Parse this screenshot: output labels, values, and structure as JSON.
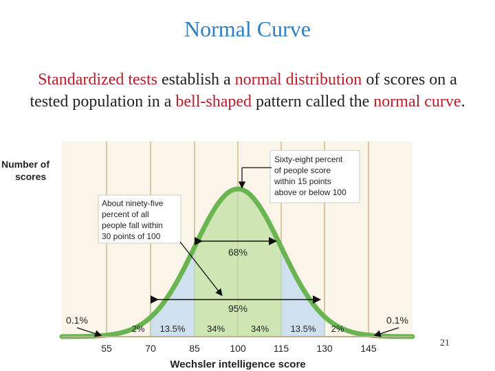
{
  "title": "Normal Curve",
  "subtitle": {
    "p1": "Standardized tests",
    "p2": " establish a ",
    "p3": "normal distribution",
    "p4": " of scores on a tested population in a ",
    "p5": "bell-shaped",
    "p6": " pattern called the ",
    "p7": "normal curve",
    "p8": "."
  },
  "slide_number": "21",
  "colors": {
    "title": "#2f7fc4",
    "highlight": "#b3202a",
    "curve": "#6ab552",
    "band_68": "#cde6b3",
    "band_95": "#cfe0ee",
    "background": "#faf5e8"
  },
  "diagram": {
    "ylabel_line1": "Number of",
    "ylabel_line2": "scores",
    "xlabel": "Wechsler intelligence score",
    "ticks": [
      "55",
      "70",
      "85",
      "100",
      "115",
      "130",
      "145"
    ],
    "pct_bands": [
      "2%",
      "13.5%",
      "34%",
      "34%",
      "13.5%",
      "2%"
    ],
    "tail_left": "0.1%",
    "tail_right": "0.1%",
    "label_68": "68%",
    "label_95": "95%",
    "note_68": [
      "Sixty-eight percent",
      "of people score",
      "within 15 points",
      "above or below 100"
    ],
    "note_95": [
      "About ninety-five",
      "percent of all",
      "people fall within",
      "30 points of 100"
    ]
  }
}
